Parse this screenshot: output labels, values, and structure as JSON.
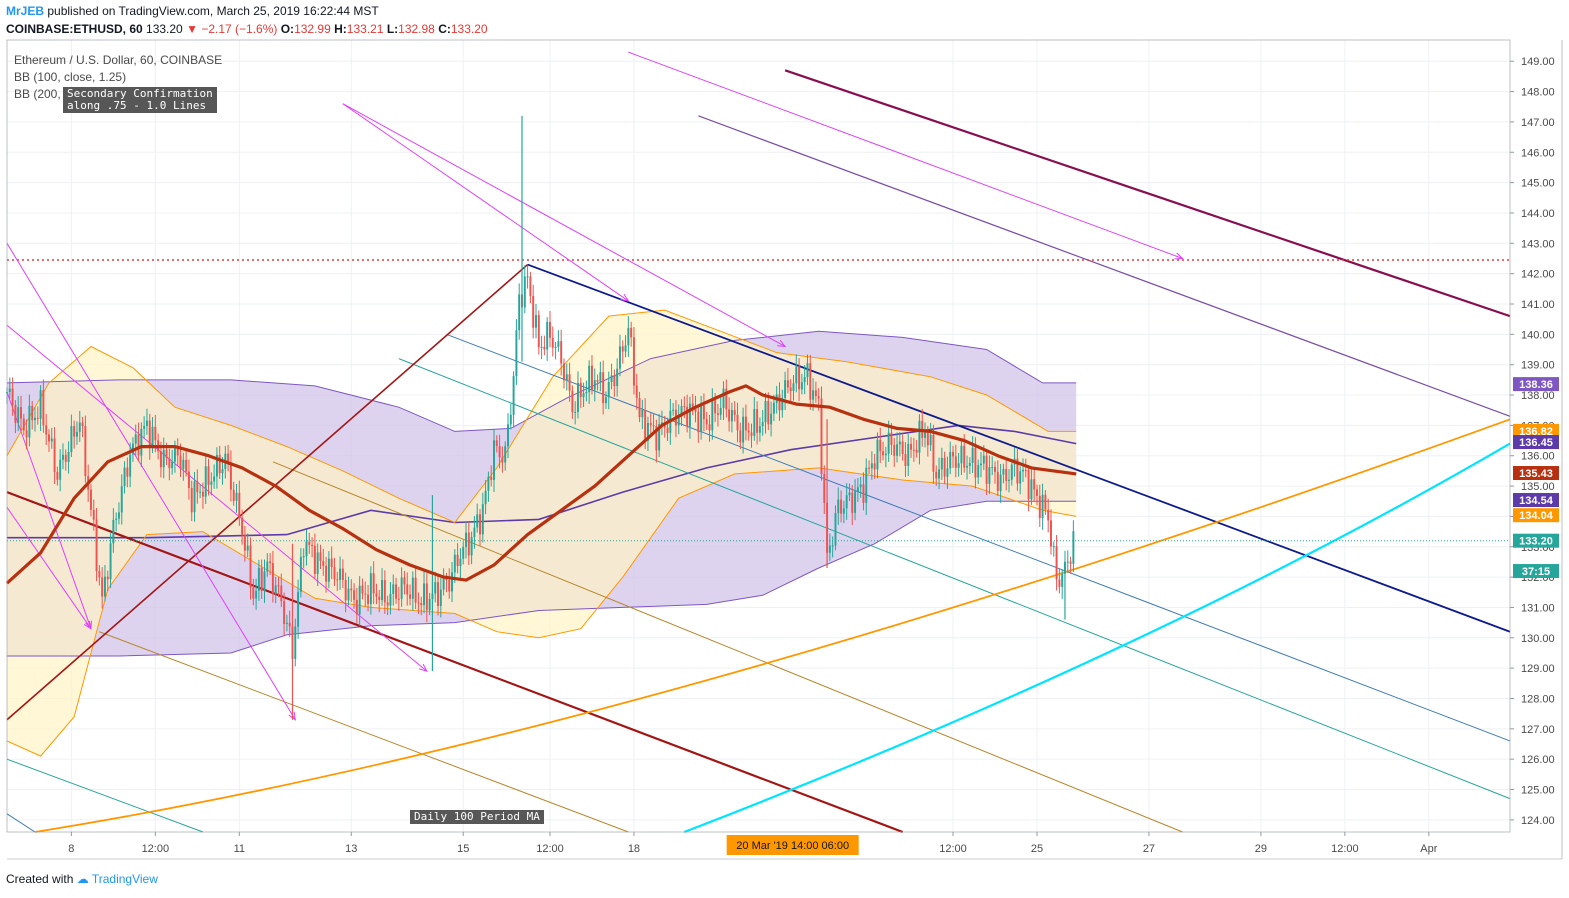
{
  "header": {
    "author": "MrJEB",
    "published": "published on TradingView.com, March 25, 2019 16:22:44 MST",
    "symbol": "COINBASE:ETHUSD, 60",
    "last": "133.20",
    "change": "−2.17 (−1.6%)",
    "open_label": "O:",
    "open": "132.99",
    "high_label": "H:",
    "high": "133.21",
    "low_label": "L:",
    "low": "132.98",
    "close_label": "C:",
    "close": "133.20"
  },
  "legend": {
    "title": "Ethereum / U.S. Dollar, 60, COINBASE",
    "bb1": "BB (100, close, 1.25)",
    "bb2": "BB (200,"
  },
  "annotations": {
    "secondary": "Secondary Confirmation\nalong .75 - 1.0 Lines",
    "daily_ma": "Daily 100 Period MA"
  },
  "footer": {
    "created_with": "Created with",
    "brand": "TradingView"
  },
  "colors": {
    "up": "#26a69a",
    "down": "#ef5350",
    "bb_purple": "#7e57c2",
    "bb_fill": "#d1c4e9",
    "bb_orange": "#ff9800",
    "bb_fill2": "#fff3c4",
    "ma": "#b7300f",
    "navy": "#0d1a8c",
    "magenta": "#e040fb",
    "dark_magenta": "#880e4f",
    "purple_line": "#7b4fa8",
    "dark_red": "#a31515",
    "teal_line": "#26a69a",
    "steel_blue": "#3d7bb6",
    "brown": "#b8862b",
    "orange_line": "#ff9800",
    "cyan": "#00e5ff",
    "red_level": "#e53935"
  },
  "chart_data": {
    "type": "candlestick",
    "title": "Ethereum / U.S. Dollar, 60, COINBASE",
    "ylim": [
      123.6,
      149.7
    ],
    "yticks": [
      124,
      125,
      126,
      127,
      128,
      129,
      130,
      131,
      132,
      133,
      134,
      135,
      136,
      137,
      138,
      139,
      140,
      141,
      142,
      143,
      144,
      145,
      146,
      147,
      148,
      149
    ],
    "ytick_labels": [
      "124.00",
      "125.00",
      "126.00",
      "127.00",
      "128.00",
      "129.00",
      "130.00",
      "131.00",
      "132.00",
      "133.00",
      "134.00",
      "135.00",
      "136.00",
      "137.00",
      "138.00",
      "139.00",
      "140.00",
      "141.00",
      "142.00",
      "143.00",
      "144.00",
      "145.00",
      "146.00",
      "147.00",
      "148.00",
      "149.00"
    ],
    "xlim": [
      0,
      537
    ],
    "xticks": [
      {
        "label": "8",
        "t": 23
      },
      {
        "label": "12:00",
        "t": 53
      },
      {
        "label": "11",
        "t": 83
      },
      {
        "label": "13",
        "t": 123
      },
      {
        "label": "15",
        "t": 163
      },
      {
        "label": "12:00",
        "t": 194
      },
      {
        "label": "18",
        "t": 224
      },
      {
        "label": "12:00",
        "t": 338
      },
      {
        "label": "25",
        "t": 368
      },
      {
        "label": "27",
        "t": 408
      },
      {
        "label": "29",
        "t": 448
      },
      {
        "label": "12:00",
        "t": 478
      },
      {
        "label": "Apr",
        "t": 508
      }
    ],
    "crosshair_label": "20 Mar '19   14:00   06:00",
    "crosshair_t": 280,
    "price_labels": [
      {
        "value": "138.36",
        "y": 138.36,
        "color": "#7e57c2"
      },
      {
        "value": "136.82",
        "y": 136.82,
        "color": "#ff9800"
      },
      {
        "value": "136.45",
        "y": 136.45,
        "color": "#5c3aa8"
      },
      {
        "value": "135.43",
        "y": 135.43,
        "color": "#b7300f"
      },
      {
        "value": "134.54",
        "y": 134.54,
        "color": "#5c3aa8"
      },
      {
        "value": "134.04",
        "y": 134.04,
        "color": "#ff9800"
      },
      {
        "value": "133.20",
        "y": 133.2,
        "color": "#26a69a"
      },
      {
        "value": "37:15",
        "y": 132.2,
        "color": "#26a69a"
      }
    ],
    "keypoints": [
      {
        "t": 0,
        "p": 138.1
      },
      {
        "t": 6,
        "p": 136.9
      },
      {
        "t": 12,
        "p": 137.6
      },
      {
        "t": 18,
        "p": 135.4
      },
      {
        "t": 26,
        "p": 137.2
      },
      {
        "t": 34,
        "p": 131.2
      },
      {
        "t": 38,
        "p": 133.6
      },
      {
        "t": 44,
        "p": 136.1
      },
      {
        "t": 50,
        "p": 137.0
      },
      {
        "t": 56,
        "p": 135.8
      },
      {
        "t": 62,
        "p": 136.0
      },
      {
        "t": 66,
        "p": 134.6
      },
      {
        "t": 72,
        "p": 135.2
      },
      {
        "t": 78,
        "p": 135.9
      },
      {
        "t": 84,
        "p": 133.6
      },
      {
        "t": 88,
        "p": 131.4
      },
      {
        "t": 93,
        "p": 132.4
      },
      {
        "t": 98,
        "p": 131.2
      },
      {
        "t": 102,
        "p": 129.6
      },
      {
        "t": 106,
        "p": 133.2
      },
      {
        "t": 112,
        "p": 132.4
      },
      {
        "t": 118,
        "p": 132.1
      },
      {
        "t": 124,
        "p": 131.2
      },
      {
        "t": 130,
        "p": 131.6
      },
      {
        "t": 136,
        "p": 131.3
      },
      {
        "t": 142,
        "p": 131.7
      },
      {
        "t": 148,
        "p": 131.2
      },
      {
        "t": 154,
        "p": 131.5
      },
      {
        "t": 158,
        "p": 131.9
      },
      {
        "t": 162,
        "p": 132.8
      },
      {
        "t": 166,
        "p": 133.3
      },
      {
        "t": 170,
        "p": 134.2
      },
      {
        "t": 174,
        "p": 136.2
      },
      {
        "t": 178,
        "p": 136.0
      },
      {
        "t": 181,
        "p": 138.6
      },
      {
        "t": 183,
        "p": 141.2
      },
      {
        "t": 186,
        "p": 141.8
      },
      {
        "t": 190,
        "p": 139.6
      },
      {
        "t": 194,
        "p": 140.0
      },
      {
        "t": 198,
        "p": 139.2
      },
      {
        "t": 202,
        "p": 137.6
      },
      {
        "t": 206,
        "p": 138.2
      },
      {
        "t": 210,
        "p": 138.6
      },
      {
        "t": 214,
        "p": 138.0
      },
      {
        "t": 218,
        "p": 138.9
      },
      {
        "t": 222,
        "p": 140.2
      },
      {
        "t": 226,
        "p": 137.2
      },
      {
        "t": 232,
        "p": 136.7
      },
      {
        "t": 238,
        "p": 137.3
      },
      {
        "t": 244,
        "p": 137.5
      },
      {
        "t": 250,
        "p": 137.1
      },
      {
        "t": 256,
        "p": 137.8
      },
      {
        "t": 262,
        "p": 136.8
      },
      {
        "t": 268,
        "p": 137.0
      },
      {
        "t": 274,
        "p": 137.6
      },
      {
        "t": 280,
        "p": 138.4
      },
      {
        "t": 286,
        "p": 138.6
      },
      {
        "t": 290,
        "p": 137.6
      },
      {
        "t": 293,
        "p": 132.6
      },
      {
        "t": 297,
        "p": 134.3
      },
      {
        "t": 302,
        "p": 134.6
      },
      {
        "t": 306,
        "p": 135.0
      },
      {
        "t": 310,
        "p": 136.0
      },
      {
        "t": 316,
        "p": 136.4
      },
      {
        "t": 322,
        "p": 136.0
      },
      {
        "t": 328,
        "p": 136.9
      },
      {
        "t": 332,
        "p": 135.4
      },
      {
        "t": 338,
        "p": 135.9
      },
      {
        "t": 344,
        "p": 135.8
      },
      {
        "t": 350,
        "p": 135.6
      },
      {
        "t": 355,
        "p": 135.2
      },
      {
        "t": 360,
        "p": 135.6
      },
      {
        "t": 364,
        "p": 135.3
      },
      {
        "t": 368,
        "p": 134.6
      },
      {
        "t": 372,
        "p": 134.0
      },
      {
        "t": 375,
        "p": 131.9
      },
      {
        "t": 378,
        "p": 132.2
      },
      {
        "t": 381,
        "p": 133.2
      }
    ],
    "spikes": [
      {
        "t": 184,
        "h": 147.2,
        "l": 139.1,
        "up": true
      },
      {
        "t": 152,
        "h": 134.7,
        "l": 128.9,
        "up": true
      },
      {
        "t": 102,
        "h": 133.1,
        "l": 127.3,
        "up": false
      },
      {
        "t": 293,
        "h": 137.2,
        "l": 132.3,
        "up": false
      },
      {
        "t": 378,
        "h": 132.2,
        "l": 130.6,
        "up": true
      }
    ],
    "ma_series": [
      {
        "t": 0,
        "p": 131.8
      },
      {
        "t": 12,
        "p": 132.8
      },
      {
        "t": 24,
        "p": 134.6
      },
      {
        "t": 36,
        "p": 135.8
      },
      {
        "t": 48,
        "p": 136.3
      },
      {
        "t": 60,
        "p": 136.3
      },
      {
        "t": 72,
        "p": 136.0
      },
      {
        "t": 84,
        "p": 135.6
      },
      {
        "t": 96,
        "p": 135.0
      },
      {
        "t": 108,
        "p": 134.2
      },
      {
        "t": 120,
        "p": 133.6
      },
      {
        "t": 132,
        "p": 132.9
      },
      {
        "t": 144,
        "p": 132.4
      },
      {
        "t": 156,
        "p": 132.0
      },
      {
        "t": 164,
        "p": 131.9
      },
      {
        "t": 174,
        "p": 132.4
      },
      {
        "t": 186,
        "p": 133.4
      },
      {
        "t": 198,
        "p": 134.2
      },
      {
        "t": 210,
        "p": 135.0
      },
      {
        "t": 222,
        "p": 136.0
      },
      {
        "t": 234,
        "p": 137.0
      },
      {
        "t": 246,
        "p": 137.6
      },
      {
        "t": 258,
        "p": 138.1
      },
      {
        "t": 264,
        "p": 138.3
      },
      {
        "t": 270,
        "p": 138.0
      },
      {
        "t": 282,
        "p": 137.7
      },
      {
        "t": 294,
        "p": 137.6
      },
      {
        "t": 306,
        "p": 137.2
      },
      {
        "t": 318,
        "p": 136.9
      },
      {
        "t": 330,
        "p": 136.8
      },
      {
        "t": 342,
        "p": 136.5
      },
      {
        "t": 354,
        "p": 136.0
      },
      {
        "t": 366,
        "p": 135.6
      },
      {
        "t": 382,
        "p": 135.4
      }
    ],
    "bb200_upper": [
      {
        "t": 0,
        "p": 138.4
      },
      {
        "t": 40,
        "p": 138.5
      },
      {
        "t": 80,
        "p": 138.5
      },
      {
        "t": 110,
        "p": 138.3
      },
      {
        "t": 140,
        "p": 137.6
      },
      {
        "t": 160,
        "p": 136.8
      },
      {
        "t": 180,
        "p": 136.9
      },
      {
        "t": 200,
        "p": 137.9
      },
      {
        "t": 230,
        "p": 139.2
      },
      {
        "t": 260,
        "p": 139.8
      },
      {
        "t": 290,
        "p": 140.1
      },
      {
        "t": 320,
        "p": 139.9
      },
      {
        "t": 350,
        "p": 139.5
      },
      {
        "t": 370,
        "p": 138.4
      },
      {
        "t": 382,
        "p": 138.4
      }
    ],
    "bb200_lower": [
      {
        "t": 0,
        "p": 129.4
      },
      {
        "t": 40,
        "p": 129.4
      },
      {
        "t": 80,
        "p": 129.5
      },
      {
        "t": 100,
        "p": 130.1
      },
      {
        "t": 130,
        "p": 130.4
      },
      {
        "t": 160,
        "p": 130.5
      },
      {
        "t": 190,
        "p": 130.9
      },
      {
        "t": 220,
        "p": 131.0
      },
      {
        "t": 250,
        "p": 131.1
      },
      {
        "t": 270,
        "p": 131.4
      },
      {
        "t": 290,
        "p": 132.3
      },
      {
        "t": 310,
        "p": 133.1
      },
      {
        "t": 330,
        "p": 134.2
      },
      {
        "t": 350,
        "p": 134.5
      },
      {
        "t": 370,
        "p": 134.5
      },
      {
        "t": 382,
        "p": 134.5
      }
    ],
    "bb200_mid": [
      {
        "t": 0,
        "p": 133.3
      },
      {
        "t": 50,
        "p": 133.3
      },
      {
        "t": 100,
        "p": 133.4
      },
      {
        "t": 130,
        "p": 134.2
      },
      {
        "t": 160,
        "p": 133.8
      },
      {
        "t": 190,
        "p": 133.9
      },
      {
        "t": 220,
        "p": 134.8
      },
      {
        "t": 250,
        "p": 135.6
      },
      {
        "t": 280,
        "p": 136.2
      },
      {
        "t": 310,
        "p": 136.6
      },
      {
        "t": 340,
        "p": 137.0
      },
      {
        "t": 360,
        "p": 136.8
      },
      {
        "t": 382,
        "p": 136.4
      }
    ],
    "bb100_upper": [
      {
        "t": 0,
        "p": 136.0
      },
      {
        "t": 15,
        "p": 138.4
      },
      {
        "t": 30,
        "p": 139.6
      },
      {
        "t": 45,
        "p": 138.9
      },
      {
        "t": 60,
        "p": 137.6
      },
      {
        "t": 80,
        "p": 137.0
      },
      {
        "t": 100,
        "p": 136.3
      },
      {
        "t": 120,
        "p": 135.5
      },
      {
        "t": 140,
        "p": 134.6
      },
      {
        "t": 160,
        "p": 133.8
      },
      {
        "t": 175,
        "p": 135.6
      },
      {
        "t": 195,
        "p": 138.6
      },
      {
        "t": 215,
        "p": 140.6
      },
      {
        "t": 235,
        "p": 140.8
      },
      {
        "t": 255,
        "p": 140.1
      },
      {
        "t": 275,
        "p": 139.4
      },
      {
        "t": 300,
        "p": 139.1
      },
      {
        "t": 330,
        "p": 138.6
      },
      {
        "t": 350,
        "p": 138.0
      },
      {
        "t": 372,
        "p": 136.8
      },
      {
        "t": 382,
        "p": 136.8
      }
    ],
    "bb100_lower": [
      {
        "t": 0,
        "p": 126.6
      },
      {
        "t": 12,
        "p": 126.1
      },
      {
        "t": 24,
        "p": 127.4
      },
      {
        "t": 36,
        "p": 131.6
      },
      {
        "t": 50,
        "p": 133.4
      },
      {
        "t": 70,
        "p": 133.5
      },
      {
        "t": 90,
        "p": 132.4
      },
      {
        "t": 110,
        "p": 131.3
      },
      {
        "t": 130,
        "p": 131.0
      },
      {
        "t": 160,
        "p": 130.8
      },
      {
        "t": 175,
        "p": 130.2
      },
      {
        "t": 190,
        "p": 130.0
      },
      {
        "t": 205,
        "p": 130.3
      },
      {
        "t": 220,
        "p": 132.0
      },
      {
        "t": 240,
        "p": 134.6
      },
      {
        "t": 260,
        "p": 135.4
      },
      {
        "t": 290,
        "p": 135.6
      },
      {
        "t": 320,
        "p": 135.2
      },
      {
        "t": 345,
        "p": 135.0
      },
      {
        "t": 370,
        "p": 134.2
      },
      {
        "t": 382,
        "p": 134.0
      }
    ],
    "trendlines": [
      {
        "name": "dark-magenta-channel",
        "color": "#880e4f",
        "w": 2.2,
        "t1": 278,
        "p1": 148.7,
        "t2": 537,
        "p2": 140.6
      },
      {
        "name": "purple-channel",
        "color": "#7b4fa8",
        "w": 1.2,
        "t1": 247,
        "p1": 147.2,
        "t2": 537,
        "p2": 137.3
      },
      {
        "name": "navy-resistance",
        "color": "#0d1a8c",
        "w": 1.8,
        "t1": 186,
        "p1": 142.3,
        "t2": 537,
        "p2": 130.2
      },
      {
        "name": "steel-blue-channel",
        "color": "#3d7bb6",
        "w": 1.0,
        "t1": 157,
        "p1": 140.0,
        "t2": 537,
        "p2": 126.6
      },
      {
        "name": "teal-channel",
        "color": "#26a69a",
        "w": 1.0,
        "t1": 140,
        "p1": 139.2,
        "t2": 537,
        "p2": 124.7
      },
      {
        "name": "teal-lower",
        "color": "#26a69a",
        "w": 1.0,
        "t1": 0,
        "p1": 126.0,
        "t2": 70,
        "p2": 123.6
      },
      {
        "name": "steel-lower",
        "color": "#3d7bb6",
        "w": 1.0,
        "t1": 0,
        "p1": 124.2,
        "t2": 10,
        "p2": 123.6
      },
      {
        "name": "brown-upper",
        "color": "#b8862b",
        "w": 1.0,
        "t1": 95,
        "p1": 135.8,
        "t2": 420,
        "p2": 123.6
      },
      {
        "name": "brown-lower",
        "color": "#b8862b",
        "w": 1.0,
        "t1": 33,
        "p1": 130.2,
        "t2": 222,
        "p2": 123.6
      },
      {
        "name": "dark-red-up",
        "color": "#a31515",
        "w": 1.6,
        "t1": 0,
        "p1": 127.3,
        "t2": 186,
        "p2": 142.3
      },
      {
        "name": "dark-red-down",
        "color": "#a31515",
        "w": 2.2,
        "t1": 0,
        "p1": 134.8,
        "t2": 320,
        "p2": 123.6
      },
      {
        "name": "orange-support",
        "color": "#ff9800",
        "w": 1.8,
        "curve": true,
        "t1": 10,
        "p1": 123.6,
        "tm": 250,
        "pm": 128.6,
        "t2": 537,
        "p2": 137.2
      },
      {
        "name": "cyan-support",
        "color": "#00e5ff",
        "w": 2.2,
        "curve": true,
        "t1": 242,
        "p1": 123.6,
        "tm": 400,
        "pm": 129.8,
        "t2": 537,
        "p2": 136.4
      }
    ],
    "arrows": [
      {
        "t1": 0,
        "p1": 143.0,
        "t2": 103,
        "p2": 127.3
      },
      {
        "t1": 0,
        "p1": 138.1,
        "t2": 30,
        "p2": 130.3
      },
      {
        "t1": 0,
        "p1": 134.3,
        "t2": 30,
        "p2": 130.3
      },
      {
        "t1": 0,
        "p1": 140.3,
        "t2": 150,
        "p2": 128.9
      },
      {
        "t1": 120,
        "p1": 147.6,
        "t2": 222,
        "p2": 141.1
      },
      {
        "t1": 120,
        "p1": 147.6,
        "t2": 278,
        "p2": 139.6
      },
      {
        "t1": 222,
        "p1": 149.3,
        "t2": 420,
        "p2": 142.5
      }
    ],
    "hline": {
      "p": 142.45,
      "color": "#e53935"
    },
    "current_price_line": {
      "p": 133.2,
      "color": "#26a69a"
    }
  }
}
